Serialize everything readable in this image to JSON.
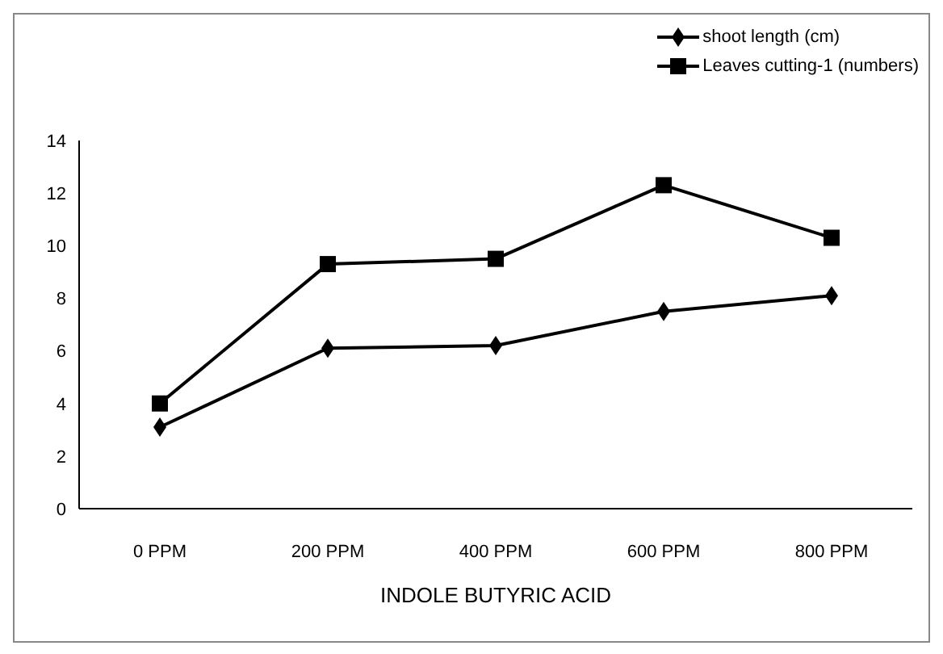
{
  "chart_data": {
    "type": "line",
    "xlabel": "INDOLE BUTYRIC ACID",
    "categories": [
      "0 PPM",
      "200 PPM",
      "400 PPM",
      "600 PPM",
      "800 PPM"
    ],
    "series": [
      {
        "name": "shoot length  (cm)",
        "color": "#000000",
        "marker": "diamond",
        "values": [
          3.1,
          6.1,
          6.2,
          7.5,
          8.1
        ]
      },
      {
        "name": "Leaves cutting-1 (numbers)",
        "color": "#000000",
        "marker": "square",
        "values": [
          4.0,
          9.3,
          9.5,
          12.3,
          10.3
        ]
      }
    ],
    "ylim": [
      0,
      14
    ],
    "yticks": [
      0,
      2,
      4,
      6,
      8,
      10,
      12,
      14
    ],
    "grid": false,
    "legend": "top right",
    "line_style": "solid"
  }
}
